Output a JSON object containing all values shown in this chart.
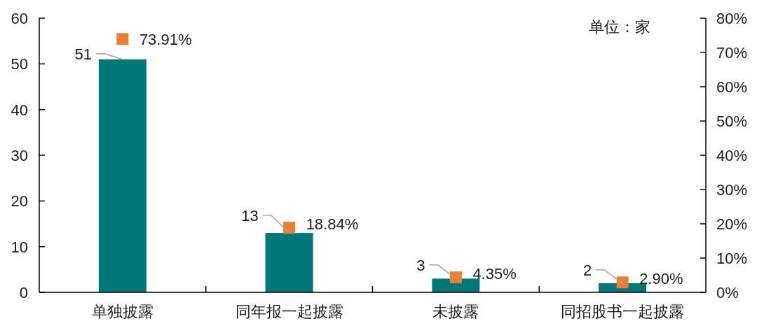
{
  "chart_data": {
    "type": "bar",
    "categories": [
      "单独披露",
      "同年报一起披露",
      "未披露",
      "同招股书一起披露"
    ],
    "series": [
      {
        "color": "#00787a",
        "values": [
          51,
          13,
          3,
          2
        ],
        "value_labels": [
          "51",
          "13",
          "3",
          "2"
        ]
      },
      {
        "type": "scatter",
        "axis": "y2",
        "color": "#ed7d31",
        "x": [
          "单独披露",
          "同年报一起披露",
          "未披露",
          "同招股书一起披露"
        ],
        "values": [
          73.91,
          18.84,
          4.35,
          2.9
        ],
        "value_labels": [
          "73.91%",
          "18.84%",
          "4.35%",
          "2.90%"
        ]
      }
    ],
    "ylim": [
      0,
      60
    ],
    "yticks": [
      0,
      10,
      20,
      30,
      40,
      50,
      60
    ],
    "y2lim": [
      0,
      80
    ],
    "y2ticks": [
      {
        "value": 0,
        "label": "0%"
      },
      {
        "value": 10,
        "label": "10%"
      },
      {
        "value": 20,
        "label": "20%"
      },
      {
        "value": 30,
        "label": "30%"
      },
      {
        "value": 40,
        "label": "40%"
      },
      {
        "value": 50,
        "label": "50%"
      },
      {
        "value": 60,
        "label": "60%"
      },
      {
        "value": 70,
        "label": "70%"
      },
      {
        "value": 80,
        "label": "80%"
      }
    ],
    "annotations": [
      "单位：家"
    ],
    "grid": false,
    "marker": "square"
  }
}
